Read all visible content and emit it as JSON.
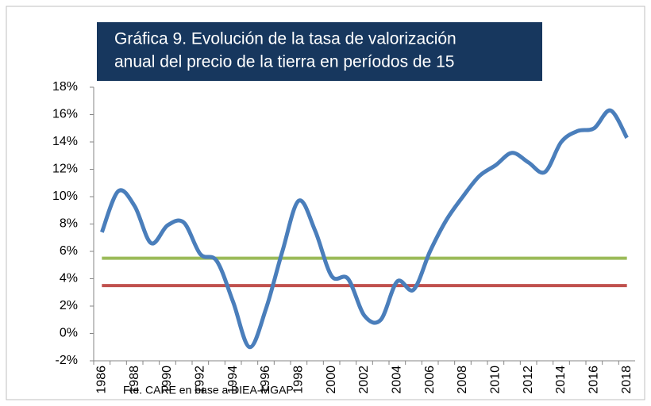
{
  "chart_data": {
    "type": "line",
    "title_lines": [
      "Gráfica 9. Evolución de la tasa de valorización",
      "anual del precio de la tierra en períodos de 15"
    ],
    "source": "Fte. CARE en base a DIEA-MGAP",
    "categories": [
      "1986",
      null,
      "1988",
      null,
      "1990",
      null,
      "1992",
      null,
      "1994",
      null,
      "1996",
      null,
      "1998",
      null,
      "2000",
      null,
      "2002",
      null,
      "2004",
      null,
      "2006",
      null,
      "2008",
      null,
      "2010",
      null,
      "2012",
      null,
      "2014",
      null,
      "2016",
      null,
      "2018"
    ],
    "values": [
      7.4,
      10.4,
      9.3,
      6.6,
      7.9,
      8.1,
      5.8,
      5.3,
      2.3,
      -1.0,
      1.8,
      6.0,
      9.7,
      7.5,
      4.2,
      4.0,
      1.3,
      1.0,
      3.8,
      3.2,
      6.0,
      8.3,
      10.0,
      11.5,
      12.3,
      13.2,
      12.5,
      11.8,
      14.0,
      14.8,
      15.0,
      16.3,
      14.3
    ],
    "color": "#4a7ebb",
    "reference_lines": [
      {
        "value": 5.5,
        "color": "#9bbb59"
      },
      {
        "value": 3.5,
        "color": "#c0504d"
      }
    ],
    "ylim": [
      -2,
      18
    ],
    "yticks": [
      {
        "value": -2,
        "label": "-2%"
      },
      {
        "value": 0,
        "label": "0%"
      },
      {
        "value": 2,
        "label": "2%"
      },
      {
        "value": 4,
        "label": "4%"
      },
      {
        "value": 6,
        "label": "6%"
      },
      {
        "value": 8,
        "label": "8%"
      },
      {
        "value": 10,
        "label": "10%"
      },
      {
        "value": 12,
        "label": "12%"
      },
      {
        "value": 14,
        "label": "14%"
      },
      {
        "value": 16,
        "label": "16%"
      },
      {
        "value": 18,
        "label": "18%"
      }
    ]
  }
}
